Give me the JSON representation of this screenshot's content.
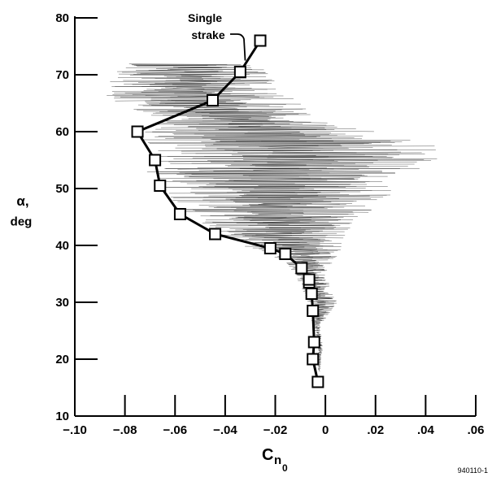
{
  "chart_data": {
    "type": "line",
    "title": "",
    "xlabel": "C",
    "xlabel_subscript": "n",
    "xlabel_sub_subscript": "0",
    "ylabel_symbol": "α,",
    "ylabel_unit": "deg",
    "xlim": [
      -0.1,
      0.06
    ],
    "ylim": [
      10,
      80
    ],
    "x_ticks": [
      -0.1,
      -0.08,
      -0.06,
      -0.04,
      -0.02,
      0,
      0.02,
      0.04,
      0.06
    ],
    "x_tick_labels": [
      "−.10",
      "−.08",
      "−.06",
      "−.04",
      "−.02",
      "0",
      ".02",
      ".04",
      ".06"
    ],
    "y_ticks": [
      10,
      20,
      30,
      40,
      50,
      60,
      70,
      80
    ],
    "y_tick_labels": [
      "10",
      "20",
      "30",
      "40",
      "50",
      "60",
      "70",
      "80"
    ],
    "grid": false,
    "series": [
      {
        "name": "Single strake",
        "marker": "square",
        "x": [
          -0.003,
          -0.005,
          -0.0045,
          -0.005,
          -0.0055,
          -0.0065,
          -0.0065,
          -0.0095,
          -0.016,
          -0.022,
          -0.044,
          -0.058,
          -0.066,
          -0.068,
          -0.075,
          -0.045,
          -0.034,
          -0.026
        ],
        "y": [
          16,
          20,
          23,
          28.5,
          31.5,
          33.5,
          34,
          36,
          38.5,
          39.5,
          42,
          45.5,
          50.5,
          55,
          60,
          65.5,
          70.5,
          76
        ]
      }
    ],
    "background_trace": {
      "description_visible": false,
      "points": [
        [
          72,
          -0.08,
          -0.02
        ],
        [
          68,
          -0.09,
          -0.02
        ],
        [
          65,
          -0.085,
          -0.01
        ],
        [
          62,
          -0.07,
          0.0
        ],
        [
          58,
          -0.075,
          0.045
        ],
        [
          55,
          -0.07,
          0.045
        ],
        [
          52,
          -0.075,
          0.03
        ],
        [
          48,
          -0.065,
          0.025
        ],
        [
          45,
          -0.055,
          0.015
        ],
        [
          42,
          -0.045,
          0.01
        ],
        [
          38,
          -0.02,
          0.005
        ],
        [
          35,
          -0.012,
          0.0
        ],
        [
          30,
          -0.008,
          0.005
        ],
        [
          26,
          -0.005,
          -0.002
        ],
        [
          22,
          -0.003,
          -0.001
        ],
        [
          18,
          -0.003,
          -0.002
        ]
      ]
    },
    "annotation": {
      "text_line1": "Single",
      "text_line2": "strake"
    },
    "figure_id": "940110-1"
  }
}
